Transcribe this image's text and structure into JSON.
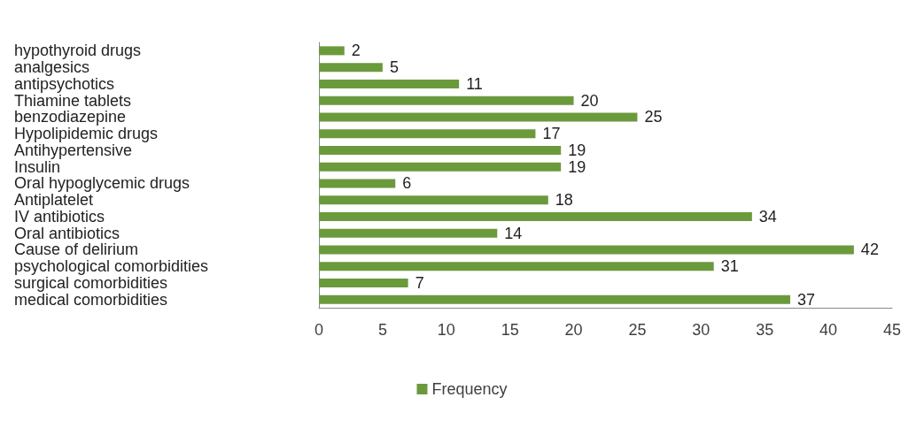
{
  "chart_data": {
    "type": "bar",
    "orientation": "horizontal",
    "categories": [
      "hypothyroid drugs",
      "analgesics",
      "antipsychotics",
      "Thiamine tablets",
      "benzodiazepine",
      "Hypolipidemic drugs",
      "Antihypertensive",
      "Insulin",
      "Oral hypoglycemic drugs",
      "Antiplatelet",
      "IV antibiotics",
      "Oral antibiotics",
      "Cause of delirium",
      "psychological comorbidities",
      "surgical comorbidities",
      "medical comorbidities"
    ],
    "series": [
      {
        "name": "Frequency",
        "color": "#6b9a3c",
        "values": [
          2,
          5,
          11,
          20,
          25,
          17,
          19,
          19,
          6,
          18,
          34,
          14,
          42,
          31,
          7,
          37
        ]
      }
    ],
    "xlim": [
      0,
      45
    ],
    "xticks": [
      0,
      5,
      10,
      15,
      20,
      25,
      30,
      35,
      40,
      45
    ],
    "grid": false,
    "legend": "bottom",
    "data_labels": true
  }
}
